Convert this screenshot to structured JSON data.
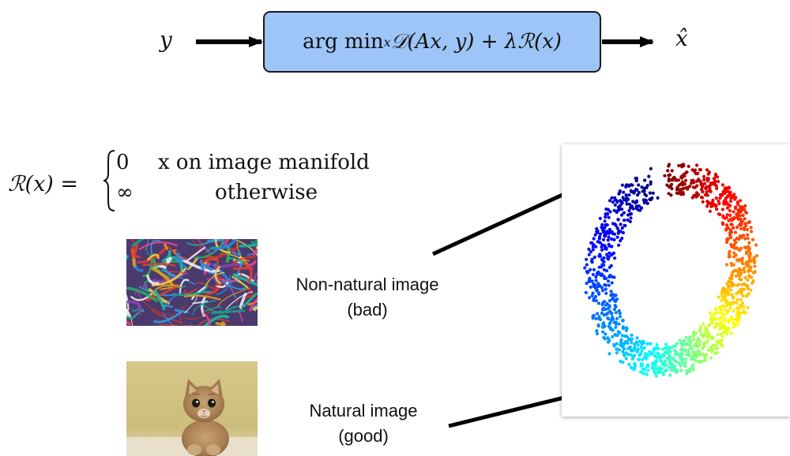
{
  "pipeline": {
    "input_symbol": "y",
    "objective": {
      "op": "arg min",
      "subscript": "x",
      "expr": " 𝒟(Ax, y) + λℛ(x)"
    },
    "output_symbol": "x̂"
  },
  "regularizer": {
    "lhs": "ℛ(x) =",
    "case1_value": "0",
    "case1_condition": "x on image manifold",
    "case2_value": "∞",
    "case2_condition": "otherwise"
  },
  "examples": {
    "bad": {
      "line1": "Non-natural image",
      "line2": "(bad)"
    },
    "good": {
      "line1": "Natural image",
      "line2": "(good)"
    }
  },
  "colors": {
    "objective_fill": "#9ec5f7",
    "arrow": "#000000"
  }
}
